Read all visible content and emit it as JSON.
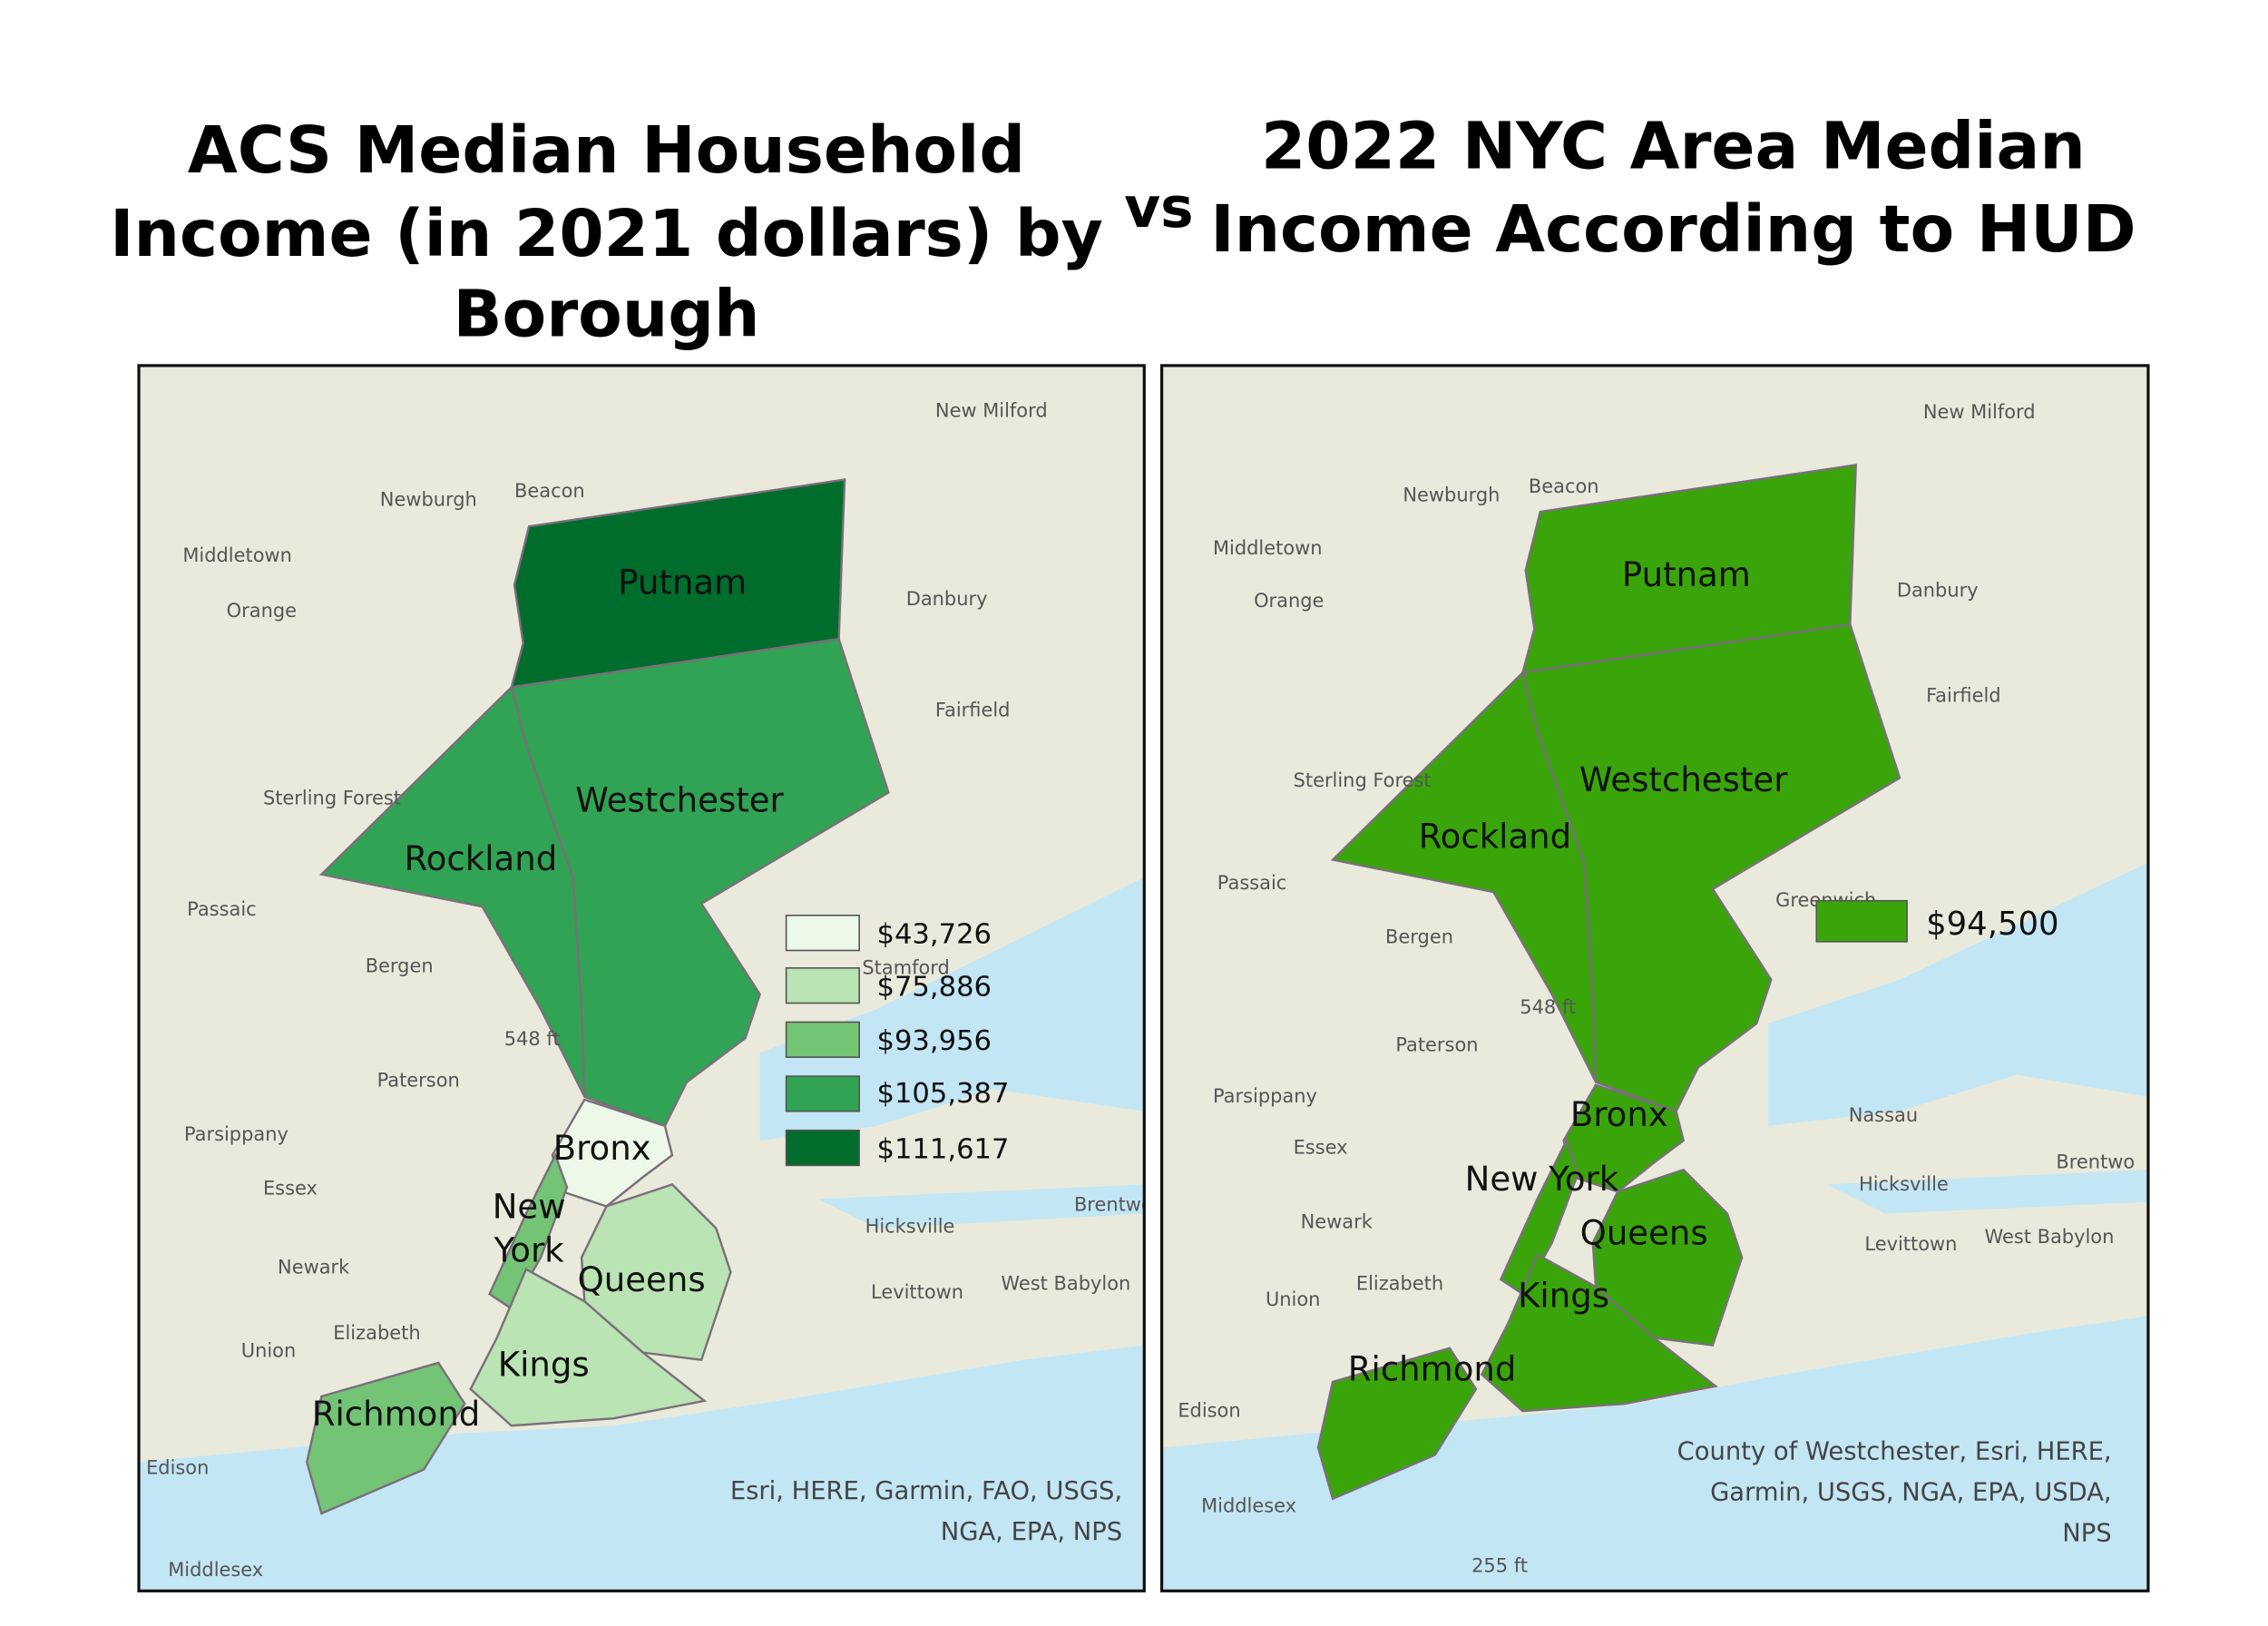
{
  "titles": {
    "left": [
      "ACS Median Household",
      "Income (in 2021 dollars) by",
      "Borough"
    ],
    "vs": "vs",
    "right": [
      "2022 NYC Area Median",
      "Income According to HUD"
    ]
  },
  "left_map": {
    "regions": [
      {
        "name": "Putnam",
        "color": "#006d2c"
      },
      {
        "name": "Westchester",
        "color": "#31a354"
      },
      {
        "name": "Rockland",
        "color": "#31a354"
      },
      {
        "name": "Bronx",
        "color": "#edf8e9"
      },
      {
        "name": "New York",
        "color": "#74c476"
      },
      {
        "name": "Queens",
        "color": "#bae4b3"
      },
      {
        "name": "Kings",
        "color": "#bae4b3"
      },
      {
        "name": "Richmond",
        "color": "#74c476"
      }
    ],
    "legend": [
      {
        "label": "$43,726",
        "color": "#edf8e9"
      },
      {
        "label": "$75,886",
        "color": "#bae4b3"
      },
      {
        "label": "$93,956",
        "color": "#74c476"
      },
      {
        "label": "$105,387",
        "color": "#31a354"
      },
      {
        "label": "$111,617",
        "color": "#006d2c"
      }
    ],
    "base_labels": [
      "New Milford",
      "Beacon",
      "Newburgh",
      "Middletown",
      "Orange",
      "Danbury",
      "Fairfield",
      "Sterling Forest",
      "Passaic",
      "Bergen",
      "Paterson",
      "Parsippany",
      "Essex",
      "Newark",
      "Elizabeth",
      "Union",
      "Edison",
      "Middlesex",
      "Hicksville",
      "Levittown",
      "West Babylon",
      "Brentwo",
      "Stamford",
      "548 ft"
    ],
    "attribution": [
      "Esri, HERE, Garmin, FAO, USGS,",
      "NGA, EPA, NPS"
    ]
  },
  "right_map": {
    "regions": [
      {
        "name": "Putnam",
        "color": "#3aa50a"
      },
      {
        "name": "Westchester",
        "color": "#3aa50a"
      },
      {
        "name": "Rockland",
        "color": "#3aa50a"
      },
      {
        "name": "Bronx",
        "color": "#3aa50a"
      },
      {
        "name": "New York",
        "color": "#3aa50a"
      },
      {
        "name": "Queens",
        "color": "#3aa50a"
      },
      {
        "name": "Kings",
        "color": "#3aa50a"
      },
      {
        "name": "Richmond",
        "color": "#3aa50a"
      }
    ],
    "legend": [
      {
        "label": "$94,500",
        "color": "#3aa50a"
      }
    ],
    "base_labels": [
      "New Milford",
      "Beacon",
      "Newburgh",
      "Middletown",
      "Orange",
      "Danbury",
      "Fairfield",
      "Sterling Forest",
      "Passaic",
      "Bergen",
      "Paterson",
      "Parsippany",
      "Essex",
      "Newark",
      "Elizabeth",
      "Union",
      "Edison",
      "Middlesex",
      "Hicksville",
      "Levittown",
      "West Babylon",
      "Brentwo",
      "Nassau",
      "Greenwich",
      "548 ft",
      "255 ft"
    ],
    "attribution": [
      "County of Westchester, Esri, HERE,",
      "Garmin, USGS, NGA, EPA, USDA,",
      "NPS"
    ]
  }
}
